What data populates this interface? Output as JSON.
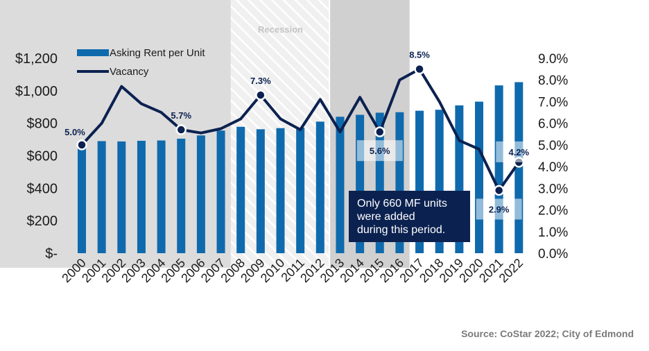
{
  "chart_data": {
    "type": "bar+line",
    "categories": [
      "2000",
      "2001",
      "2002",
      "2003",
      "2004",
      "2005",
      "2006",
      "2007",
      "2008",
      "2009",
      "2010",
      "2011",
      "2012",
      "2013",
      "2014",
      "2015",
      "2016",
      "2017",
      "2018",
      "2019",
      "2020",
      "2021",
      "2022"
    ],
    "series": [
      {
        "name": "Asking Rent per Unit",
        "type": "bar",
        "axis": "left",
        "color": "#0f6aad",
        "values": [
          660,
          690,
          688,
          692,
          694,
          705,
          725,
          755,
          778,
          763,
          770,
          773,
          810,
          840,
          852,
          865,
          868,
          877,
          883,
          910,
          933,
          1033,
          1053
        ]
      },
      {
        "name": "Vacancy",
        "type": "line",
        "axis": "right",
        "color": "#0b2150",
        "values": [
          5.0,
          6.0,
          7.7,
          6.9,
          6.5,
          5.7,
          5.55,
          5.75,
          6.2,
          7.3,
          6.2,
          5.7,
          7.1,
          5.6,
          7.2,
          5.6,
          8.0,
          8.5,
          7.0,
          5.2,
          4.8,
          2.9,
          4.2
        ]
      }
    ],
    "y_left": {
      "min": 0,
      "max": 1200,
      "ticks": [
        "$-",
        "$200",
        "$400",
        "$600",
        "$800",
        "$1,000",
        "$1,200"
      ]
    },
    "y_right": {
      "min": 0,
      "max": 9,
      "ticks": [
        "0.0%",
        "1.0%",
        "2.0%",
        "3.0%",
        "4.0%",
        "5.0%",
        "6.0%",
        "7.0%",
        "8.0%",
        "9.0%"
      ]
    },
    "labeled_points": [
      {
        "index": 0,
        "label": "5.0%",
        "placement": "above-left"
      },
      {
        "index": 5,
        "label": "5.7%",
        "placement": "above"
      },
      {
        "index": 9,
        "label": "7.3%",
        "placement": "above"
      },
      {
        "index": 15,
        "label": "5.6%",
        "placement": "below-box"
      },
      {
        "index": 17,
        "label": "8.5%",
        "placement": "above"
      },
      {
        "index": 21,
        "label": "2.9%",
        "placement": "below-box"
      },
      {
        "index": 22,
        "label": "4.2%",
        "placement": "above-box"
      }
    ],
    "shaded_periods": [
      {
        "name": "gray",
        "from_index": 0,
        "to_index": 8,
        "color": "#dcdcdc"
      },
      {
        "name": "Recession",
        "from_index": 8,
        "to_index": 13,
        "color": "#efefef",
        "hatched": true
      },
      {
        "name": "gray",
        "from_index": 13,
        "to_index": 17,
        "color": "#d0d0d0"
      }
    ],
    "recession_label": "Recession",
    "annotation": "Only 660 MF units were added during this period.",
    "annotation_lines": [
      "Only 660 MF units",
      "were added",
      "during this period."
    ],
    "legend": [
      {
        "name": "Asking Rent per Unit",
        "shape": "bar"
      },
      {
        "name": "Vacancy",
        "shape": "line"
      }
    ],
    "legend_position": "top-left",
    "source": "Source: CoStar 2022; City of Edmond",
    "colors": {
      "bar": "#0f6aad",
      "line": "#0b2150",
      "annotation_box": "#0b2150",
      "text": "#1a1a1a",
      "label_box": "#ffffff"
    }
  }
}
